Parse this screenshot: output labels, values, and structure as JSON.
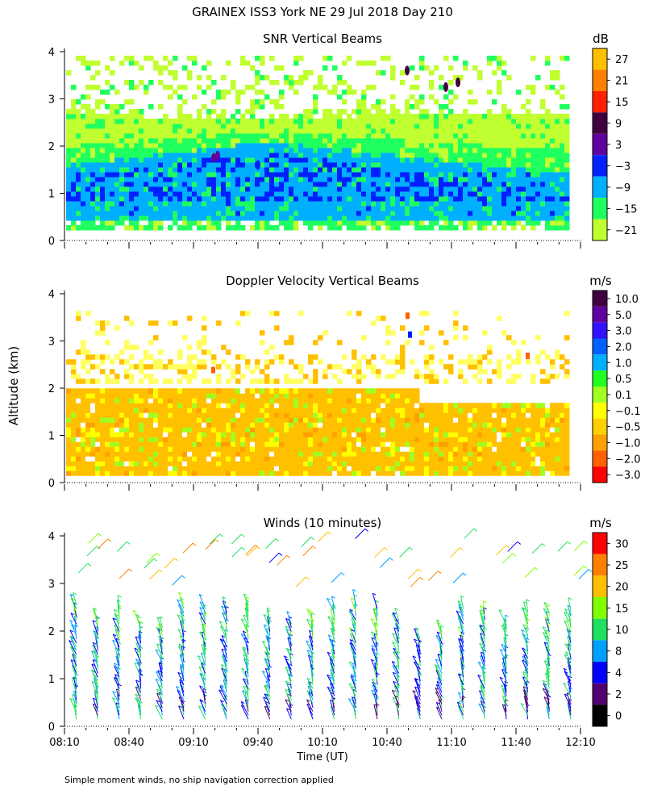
{
  "figure": {
    "title": "GRAINEX ISS3 York NE  29 Jul 2018 Day 210",
    "ylabel": "Altitude (km)",
    "xlabel": "Time (UT)",
    "footnote": "Simple moment winds, no ship navigation correction applied"
  },
  "chart_data": [
    {
      "type": "heatmap",
      "title": "SNR Vertical Beams",
      "xlabel": "Time (UT)",
      "ylabel": "Altitude (km)",
      "xlim": [
        "08:10",
        "12:10"
      ],
      "ylim": [
        0,
        4
      ],
      "yticks": [
        0,
        1,
        2,
        3,
        4
      ],
      "colorbar": {
        "unit": "dB",
        "labels": [
          "27",
          "21",
          "15",
          "9",
          "3",
          "−3",
          "−9",
          "−15",
          "−21"
        ],
        "colors": [
          "#ffc000",
          "#ff8000",
          "#ff2000",
          "#400040",
          "#6000a0",
          "#0020ff",
          "#00b0ff",
          "#20ff60",
          "#c0ff30"
        ]
      },
      "layers": [
        {
          "color": "#00b0ff",
          "ymin": 0.35,
          "ymax_start": 1.55,
          "ymax_mid": 2.05,
          "ymax_end": 1.35
        },
        {
          "color": "#0020ff",
          "ymin": 0.75,
          "ymax_start": 1.35,
          "ymax_mid": 1.85,
          "ymax_end": 0.9
        },
        {
          "color": "#20ff60",
          "ymin": 0.2,
          "ymax_start": 1.95,
          "ymax_mid": 2.25,
          "ymax_end": 1.85
        },
        {
          "color": "#c0ff30",
          "ymin": 1.75,
          "ymax_start": 2.6,
          "ymax_mid": 2.55,
          "ymax_end": 2.65
        }
      ]
    },
    {
      "type": "heatmap",
      "title": "Doppler Velocity Vertical Beams",
      "xlabel": "Time (UT)",
      "ylabel": "Altitude (km)",
      "xlim": [
        "08:10",
        "12:10"
      ],
      "ylim": [
        0,
        4
      ],
      "yticks": [
        0,
        1,
        2,
        3,
        4
      ],
      "colorbar": {
        "unit": "m/s",
        "labels": [
          "10.0",
          "5.0",
          "3.0",
          "2.0",
          "1.0",
          "0.5",
          "0.1",
          "−0.1",
          "−0.5",
          "−1.0",
          "−2.0",
          "−3.0"
        ],
        "colors": [
          "#400040",
          "#6000a0",
          "#3010ff",
          "#0060ff",
          "#00b0ff",
          "#20ff20",
          "#a0ff20",
          "#ffff00",
          "#ffd000",
          "#ffa000",
          "#ff6000",
          "#ff0000"
        ]
      },
      "main_band": {
        "color": "#ffc000",
        "ymin": 0.15,
        "ymax": 1.9
      },
      "upper_band": {
        "color": "#ffff60",
        "ymin": 2.0,
        "ymax": 2.7
      }
    },
    {
      "type": "scatter",
      "title": "Winds (10 minutes)",
      "xlabel": "Time (UT)",
      "ylabel": "Altitude (km)",
      "xlim": [
        "08:10",
        "12:10"
      ],
      "xticks": [
        "08:10",
        "08:40",
        "09:10",
        "09:40",
        "10:10",
        "10:40",
        "11:10",
        "11:40",
        "12:10"
      ],
      "ylim": [
        0,
        4
      ],
      "yticks": [
        0,
        1,
        2,
        3,
        4
      ],
      "colorbar": {
        "unit": "m/s",
        "labels": [
          "30",
          "25",
          "20",
          "15",
          "10",
          "8",
          "4",
          "2",
          "0"
        ],
        "colors": [
          "#ff0000",
          "#ff8000",
          "#ffc000",
          "#80ff00",
          "#20e060",
          "#00a0ff",
          "#0000ff",
          "#500070",
          "#000000"
        ]
      },
      "profile_times": [
        "08:20",
        "08:30",
        "08:40",
        "08:50",
        "09:00",
        "09:10",
        "09:20",
        "09:30",
        "09:40",
        "09:50",
        "10:00",
        "10:10",
        "10:20",
        "10:30",
        "10:40",
        "10:50",
        "11:00",
        "11:10",
        "11:20",
        "11:30",
        "11:40",
        "11:50",
        "12:00",
        "12:10"
      ],
      "barb_height_top": [
        2.6,
        2.3,
        2.5,
        2.2,
        2.1,
        2.6,
        2.5,
        2.5,
        2.6,
        2.3,
        2.2,
        2.3,
        2.5,
        2.6,
        2.5,
        2.3,
        1.9,
        2.0,
        2.5,
        2.4,
        2.2,
        2.4,
        2.4,
        2.4
      ],
      "direction_deg": "northwesterly to westerly",
      "speed_range": [
        0,
        30
      ]
    }
  ]
}
